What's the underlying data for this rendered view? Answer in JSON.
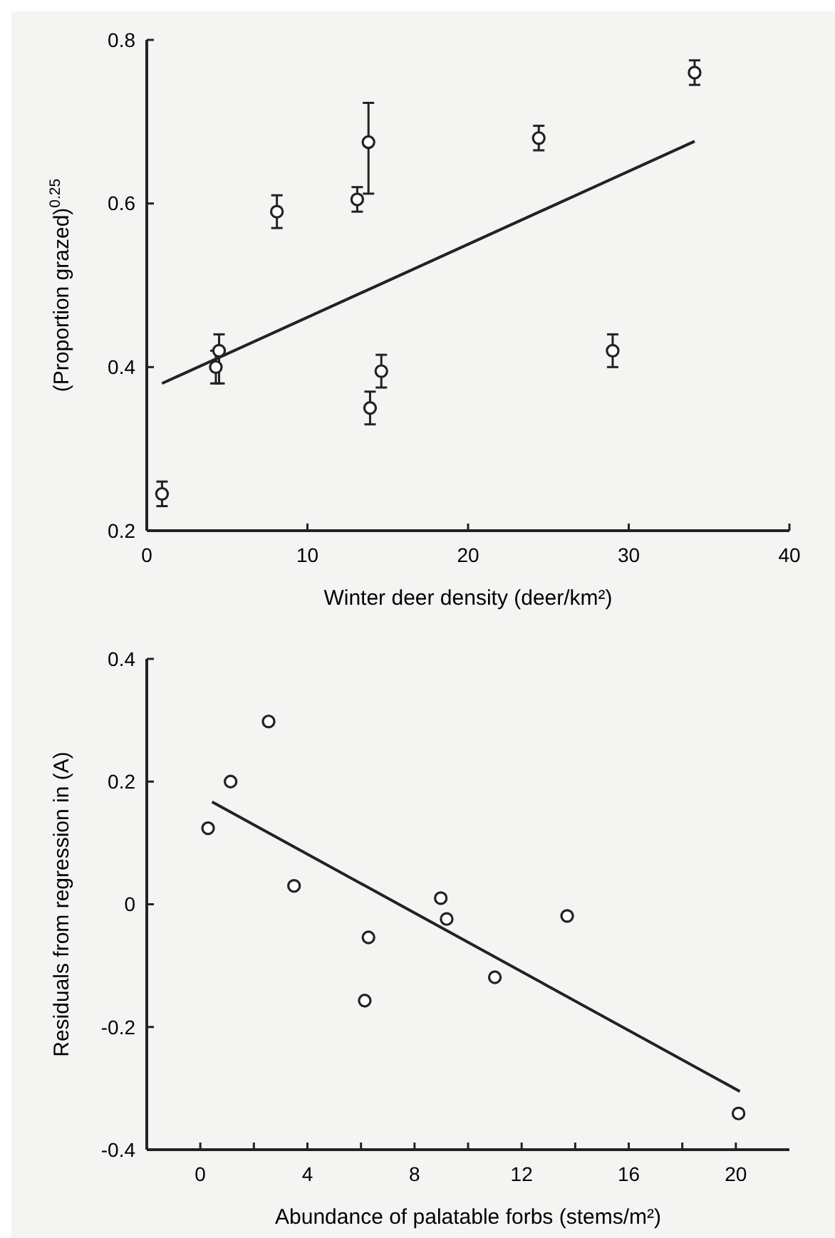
{
  "chart_data": [
    {
      "type": "scatter",
      "xlabel": "Winter deer density (deer/km²)",
      "ylabel": "(Proportion grazed)$^{0.25}$",
      "xlim": [
        0,
        40
      ],
      "ylim": [
        0.2,
        0.8
      ],
      "xticks": [
        0,
        10,
        20,
        30,
        40
      ],
      "yticks": [
        0.2,
        0.4,
        0.6,
        0.8
      ],
      "grid": false,
      "series": [
        {
          "marker": "circle",
          "color": "#222222",
          "x": [
            0.95,
            4.3,
            4.5,
            8.1,
            13.1,
            13.8,
            13.9,
            14.6,
            24.4,
            29.0,
            34.1
          ],
          "values": [
            0.245,
            0.4,
            0.42,
            0.59,
            0.605,
            0.675,
            0.35,
            0.395,
            0.68,
            0.42,
            0.76
          ],
          "errors": [
            0.015,
            0.02,
            [
              0.38,
              0.44
            ],
            0.02,
            0.015,
            [
              0.612,
              0.723
            ],
            0.02,
            0.02,
            0.015,
            0.02,
            0.015
          ]
        },
        {
          "type": "line",
          "color": "#222222",
          "x": [
            0.95,
            34.1
          ],
          "values": [
            0.38,
            0.676
          ]
        }
      ]
    },
    {
      "type": "scatter",
      "xlabel": "Abundance of palatable forbs (stems/m²)",
      "ylabel": "Residuals from regression in (A)",
      "xlim": [
        -2,
        22
      ],
      "ylim": [
        -0.4,
        0.4
      ],
      "xticks": [
        0,
        {
          "value": 2,
          "label": null
        },
        4,
        {
          "value": 6,
          "label": null
        },
        8,
        {
          "value": 10,
          "label": null
        },
        12,
        {
          "value": 14,
          "label": null
        },
        16,
        {
          "value": 18,
          "label": null
        },
        20
      ],
      "yticks": [
        -0.4,
        -0.2,
        0,
        0.2,
        0.4
      ],
      "grid": false,
      "series": [
        {
          "marker": "circle",
          "color": "#222222",
          "x": [
            0.29,
            1.13,
            2.55,
            3.5,
            6.28,
            6.14,
            8.98,
            9.2,
            11.0,
            13.7,
            20.1
          ],
          "values": [
            0.124,
            0.2,
            0.298,
            0.03,
            -0.054,
            -0.157,
            0.01,
            -0.024,
            -0.119,
            -0.019,
            -0.341
          ]
        },
        {
          "type": "line",
          "color": "#222222",
          "x": [
            0.44,
            20.15
          ],
          "values": [
            0.167,
            -0.305
          ]
        }
      ]
    }
  ]
}
